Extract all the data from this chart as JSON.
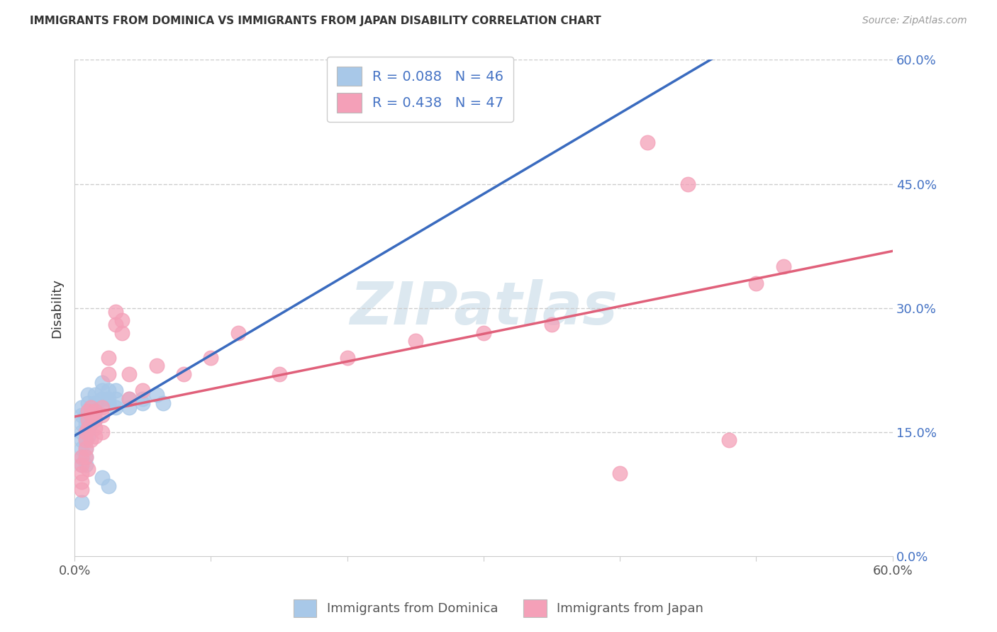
{
  "title": "IMMIGRANTS FROM DOMINICA VS IMMIGRANTS FROM JAPAN DISABILITY CORRELATION CHART",
  "source": "Source: ZipAtlas.com",
  "ylabel": "Disability",
  "xlim": [
    0.0,
    0.6
  ],
  "ylim": [
    0.0,
    0.6
  ],
  "ytick_values": [
    0.0,
    0.15,
    0.3,
    0.45,
    0.6
  ],
  "ytick_labels": [
    "0.0%",
    "15.0%",
    "30.0%",
    "45.0%",
    "60.0%"
  ],
  "xtick_values": [
    0.0,
    0.1,
    0.2,
    0.3,
    0.4,
    0.5,
    0.6
  ],
  "xtick_end_labels": [
    "0.0%",
    "60.0%"
  ],
  "grid_yticks": [
    0.15,
    0.3,
    0.45,
    0.6
  ],
  "dominica_R": 0.088,
  "dominica_N": 46,
  "japan_R": 0.438,
  "japan_N": 47,
  "dominica_color": "#a8c8e8",
  "japan_color": "#f4a0b8",
  "dominica_line_color": "#3a6bbf",
  "japan_line_color": "#e0607a",
  "watermark_text": "ZIPatlas",
  "watermark_color": "#dce8f0",
  "dominica_x": [
    0.005,
    0.005,
    0.005,
    0.005,
    0.005,
    0.005,
    0.005,
    0.005,
    0.008,
    0.008,
    0.008,
    0.008,
    0.008,
    0.008,
    0.008,
    0.01,
    0.01,
    0.01,
    0.01,
    0.01,
    0.01,
    0.012,
    0.012,
    0.012,
    0.015,
    0.015,
    0.015,
    0.015,
    0.02,
    0.02,
    0.02,
    0.025,
    0.025,
    0.025,
    0.03,
    0.03,
    0.03,
    0.04,
    0.04,
    0.05,
    0.05,
    0.06,
    0.065,
    0.02,
    0.025,
    0.005
  ],
  "dominica_y": [
    0.18,
    0.17,
    0.16,
    0.15,
    0.14,
    0.13,
    0.12,
    0.11,
    0.17,
    0.16,
    0.15,
    0.14,
    0.13,
    0.12,
    0.11,
    0.195,
    0.185,
    0.175,
    0.165,
    0.155,
    0.145,
    0.18,
    0.17,
    0.16,
    0.195,
    0.185,
    0.175,
    0.165,
    0.21,
    0.2,
    0.19,
    0.2,
    0.19,
    0.185,
    0.2,
    0.19,
    0.18,
    0.19,
    0.18,
    0.19,
    0.185,
    0.195,
    0.185,
    0.095,
    0.085,
    0.065
  ],
  "japan_x": [
    0.005,
    0.005,
    0.005,
    0.005,
    0.005,
    0.008,
    0.008,
    0.008,
    0.008,
    0.01,
    0.01,
    0.01,
    0.01,
    0.012,
    0.012,
    0.012,
    0.015,
    0.015,
    0.015,
    0.015,
    0.02,
    0.02,
    0.02,
    0.025,
    0.025,
    0.03,
    0.03,
    0.035,
    0.035,
    0.04,
    0.04,
    0.05,
    0.06,
    0.08,
    0.1,
    0.12,
    0.15,
    0.2,
    0.25,
    0.3,
    0.35,
    0.4,
    0.42,
    0.45,
    0.48,
    0.5,
    0.52
  ],
  "japan_y": [
    0.12,
    0.11,
    0.1,
    0.09,
    0.08,
    0.15,
    0.14,
    0.13,
    0.12,
    0.175,
    0.165,
    0.155,
    0.105,
    0.18,
    0.17,
    0.14,
    0.175,
    0.165,
    0.155,
    0.145,
    0.18,
    0.17,
    0.15,
    0.24,
    0.22,
    0.295,
    0.28,
    0.285,
    0.27,
    0.22,
    0.19,
    0.2,
    0.23,
    0.22,
    0.24,
    0.27,
    0.22,
    0.24,
    0.26,
    0.27,
    0.28,
    0.1,
    0.5,
    0.45,
    0.14,
    0.33,
    0.35
  ]
}
